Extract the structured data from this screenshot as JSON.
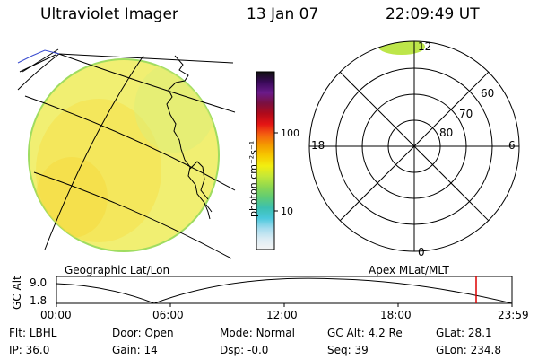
{
  "header": {
    "instrument": "Ultraviolet Imager",
    "date": "13 Jan 07",
    "time": "22:09:49 UT"
  },
  "colorbar": {
    "unit_label": "photon cm⁻²s⁻¹",
    "ticks": [
      {
        "label": "100",
        "value": 100
      },
      {
        "label": "10",
        "value": 10
      }
    ],
    "colors": [
      "#101010",
      "#3a0a5a",
      "#6a1a8a",
      "#7a1040",
      "#b00a1a",
      "#e41414",
      "#f46010",
      "#f49a00",
      "#f6c800",
      "#f2ee10",
      "#c4e838",
      "#8ed850",
      "#60cc74",
      "#3cc0b0",
      "#4ac8dc",
      "#a6dcee",
      "#dcecf4",
      "#f4f4f4"
    ]
  },
  "polar_plot": {
    "mlt_labels": [
      "12",
      "18",
      "6",
      "0"
    ],
    "lat_labels": [
      "60",
      "70",
      "80"
    ],
    "glow_color": "#bde64a"
  },
  "map": {
    "fill_color": "#f1ef72",
    "edge_color": "#9fdc60"
  },
  "labels": {
    "left_projection": "Geographic Lat/Lon",
    "right_projection": "Apex MLat/MLT"
  },
  "altitude_plot": {
    "axis_title": "GC Alt",
    "y_ticks": [
      "9.0",
      "1.8"
    ],
    "x_ticks": [
      "00:00",
      "06:00",
      "12:00",
      "18:00",
      "23:59"
    ],
    "marker_time": "22:09:49",
    "marker_color": "#dd0000"
  },
  "status": {
    "row1": [
      {
        "key": "Flt:",
        "value": "LBHL"
      },
      {
        "key": "Door:",
        "value": "Open"
      },
      {
        "key": "Mode:",
        "value": "Normal"
      },
      {
        "key": "GC Alt:",
        "value": "4.2 Re"
      },
      {
        "key": "GLat:",
        "value": "28.1"
      }
    ],
    "row2": [
      {
        "key": "IP:",
        "value": "36.0"
      },
      {
        "key": "Gain:",
        "value": "14"
      },
      {
        "key": "Dsp:",
        "value": "-0.0"
      },
      {
        "key": "Seq:",
        "value": "39"
      },
      {
        "key": "GLon:",
        "value": "234.8"
      }
    ]
  }
}
